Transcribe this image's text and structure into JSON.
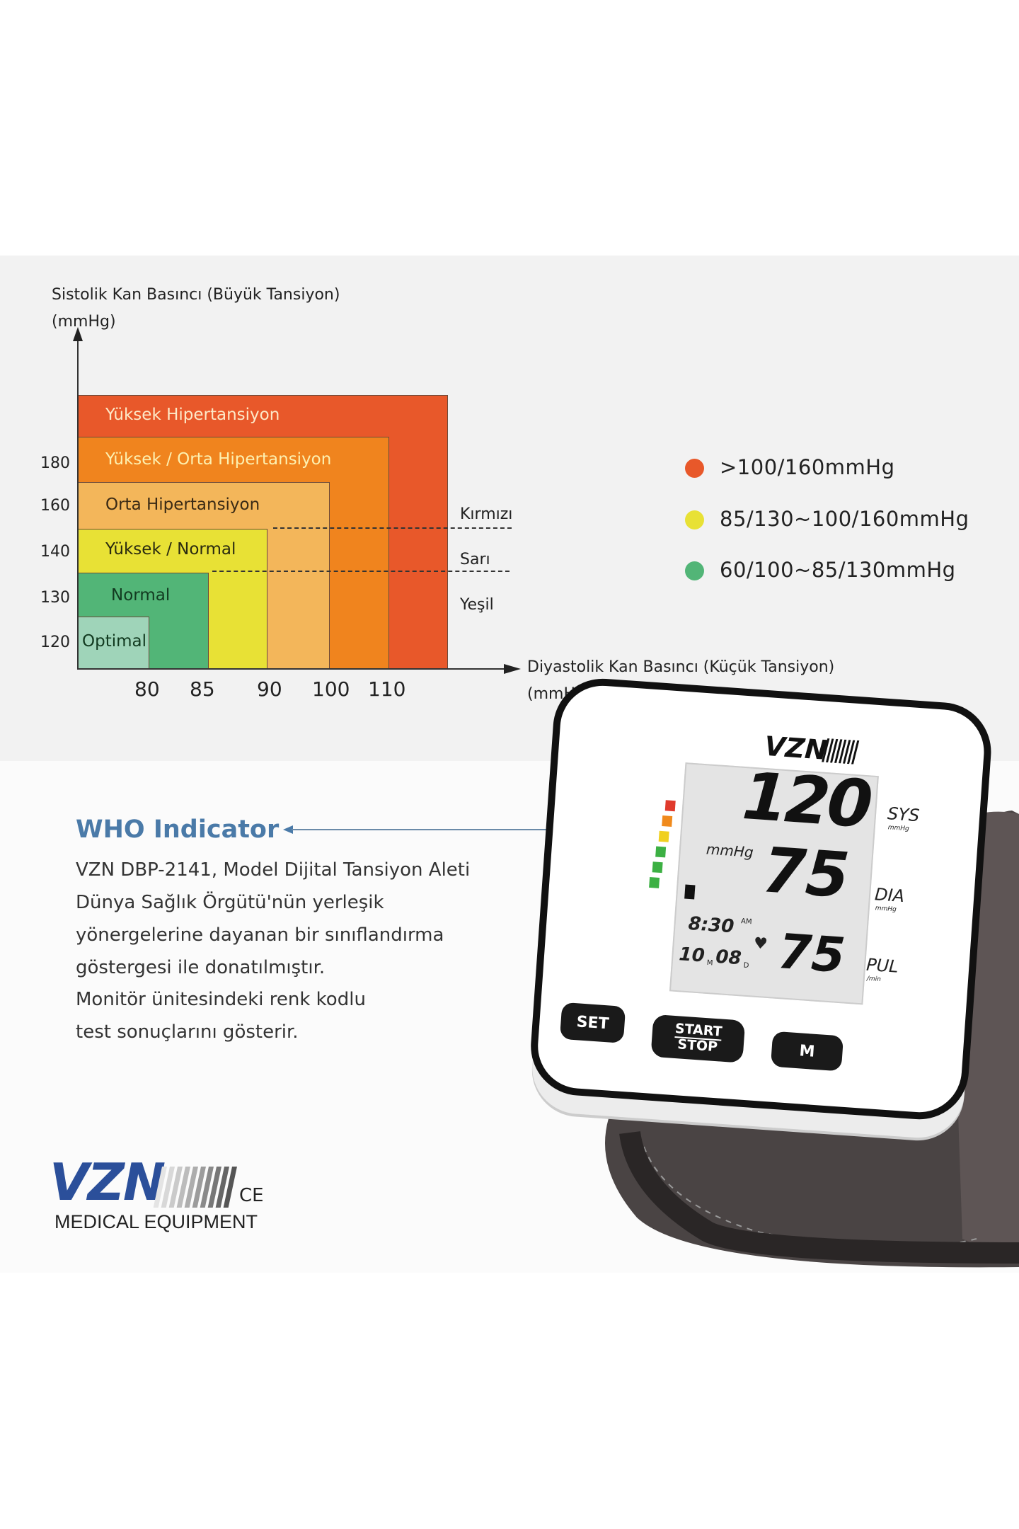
{
  "chart": {
    "y_axis_title": "Sistolik Kan Basıncı (Büyük Tansiyon)",
    "y_axis_unit": "(mmHg)",
    "x_axis_title": "Diyastolik Kan Basıncı (Küçük Tansiyon)",
    "x_axis_unit": "(mmHg)",
    "y_ticks": [
      "180",
      "160",
      "140",
      "130",
      "120"
    ],
    "x_ticks": [
      "80",
      "85",
      "90",
      "100",
      "110"
    ],
    "zones": [
      {
        "label": "Yüksek Hipertansiyon",
        "color": "#e8582a"
      },
      {
        "label": "Yüksek / Orta Hipertansiyon",
        "color": "#f0841e"
      },
      {
        "label": "Orta Hipertansiyon",
        "color": "#f3b65a"
      },
      {
        "label": "Yüksek / Normal",
        "color": "#e8e135"
      },
      {
        "label": "Normal",
        "color": "#52b577"
      },
      {
        "label": "Optimal",
        "color": "#9fd4b9"
      }
    ],
    "thresholds": [
      "Kırmızı",
      "Sarı",
      "Yeşil"
    ]
  },
  "legend": [
    {
      "text": ">100/160mmHg",
      "color": "#e8582a"
    },
    {
      "text": "85/130~100/160mmHg",
      "color": "#e8e135"
    },
    {
      "text": "60/100~85/130mmHg",
      "color": "#52b577"
    }
  ],
  "who": {
    "title": "WHO Indicator",
    "title_color": "#4a7aa8",
    "lines": [
      "VZN DBP-2141, Model Dijital Tansiyon Aleti",
      "Dünya Sağlık Örgütü'nün yerleşik",
      "yönergelerine dayanan bir sınıflandırma",
      "göstergesi ile donatılmıştır.",
      "Monitör ünitesindeki renk kodlu",
      "test sonuçlarını gösterir."
    ]
  },
  "logo": {
    "brand": "VZN",
    "mark": "CE",
    "tagline": "MEDICAL EQUIPMENT",
    "brand_color": "#2b4f9a"
  },
  "device": {
    "brand": "VZN",
    "sys": "120",
    "sys_label": "SYS",
    "sys_unit": "mmHg",
    "dia": "75",
    "dia_label": "DIA",
    "dia_unit": "mmHg",
    "pul": "75",
    "pul_label": "PUL",
    "pul_unit": "/min",
    "center_unit": "mmHg",
    "time": "8:30",
    "ampm": "AM",
    "month": "10",
    "month_mark": "M",
    "day": "08",
    "day_mark": "D",
    "indicator_colors": [
      "#e03a2c",
      "#f08a1c",
      "#f0d020",
      "#3cb043",
      "#3cb043",
      "#3cb043"
    ],
    "buttons": {
      "set": "SET",
      "start": "START",
      "stop": "STOP",
      "memory": "M"
    }
  }
}
